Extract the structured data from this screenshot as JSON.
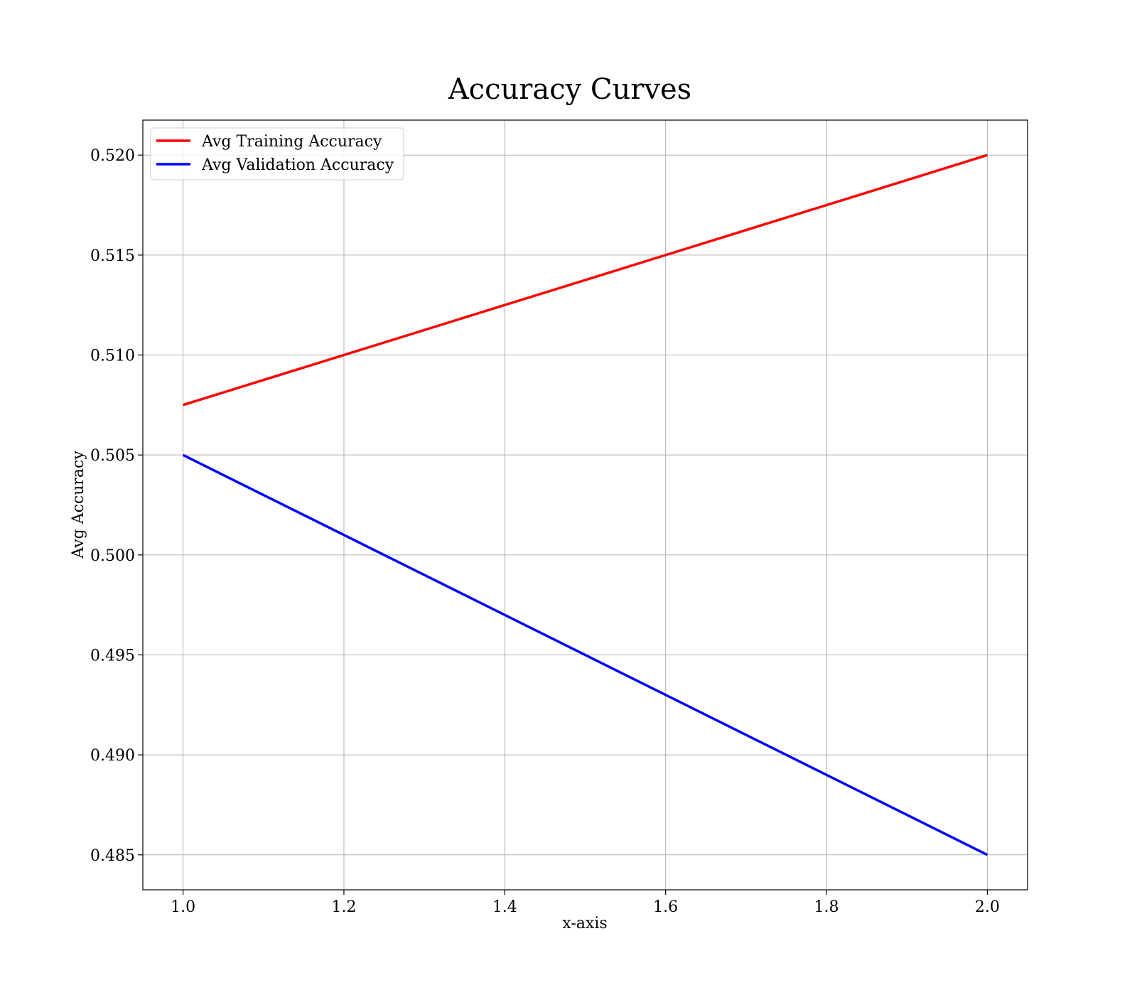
{
  "chart_data": {
    "type": "line",
    "title": "Accuracy Curves",
    "xlabel": "x-axis",
    "ylabel": "Avg Accuracy",
    "xlim": [
      0.95,
      2.05
    ],
    "ylim": [
      0.48325,
      0.52175
    ],
    "xticks": [
      1.0,
      1.2,
      1.4,
      1.6,
      1.8,
      2.0
    ],
    "xtick_labels": [
      "1.0",
      "1.2",
      "1.4",
      "1.6",
      "1.8",
      "2.0"
    ],
    "yticks": [
      0.485,
      0.49,
      0.495,
      0.5,
      0.505,
      0.51,
      0.515,
      0.52
    ],
    "ytick_labels": [
      "0.485",
      "0.490",
      "0.495",
      "0.500",
      "0.505",
      "0.510",
      "0.515",
      "0.520"
    ],
    "grid": true,
    "legend_position": "top-left",
    "series": [
      {
        "name": "Avg Training Accuracy",
        "color": "#ff0000",
        "x": [
          1.0,
          2.0
        ],
        "y": [
          0.5075,
          0.52
        ]
      },
      {
        "name": "Avg Validation Accuracy",
        "color": "#0000ff",
        "x": [
          1.0,
          2.0
        ],
        "y": [
          0.505,
          0.485
        ]
      }
    ]
  }
}
